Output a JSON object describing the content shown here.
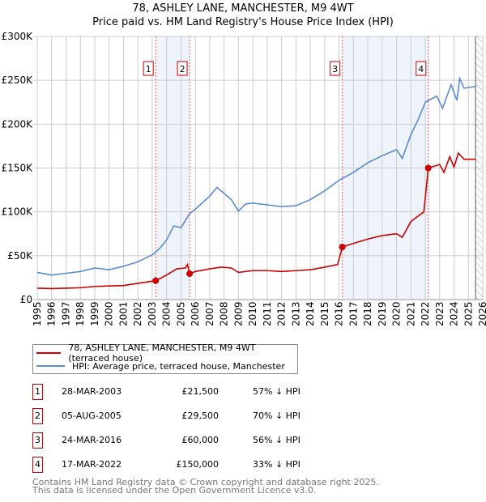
{
  "title": "78, ASHLEY LANE, MANCHESTER, M9 4WT",
  "subtitle": "Price paid vs. HM Land Registry's House Price Index (HPI)",
  "chart_data": {
    "type": "line",
    "title": "78, ASHLEY LANE, MANCHESTER, M9 4WT",
    "subtitle": "Price paid vs. HM Land Registry's House Price Index (HPI)",
    "xlim": [
      1995,
      2026
    ],
    "ylim": [
      0,
      300000
    ],
    "grid": true,
    "x_ticks": [
      "1995",
      "1996",
      "1997",
      "1998",
      "1999",
      "2000",
      "2001",
      "2002",
      "2003",
      "2004",
      "2005",
      "2006",
      "2007",
      "2008",
      "2009",
      "2010",
      "2011",
      "2012",
      "2013",
      "2014",
      "2015",
      "2016",
      "2017",
      "2018",
      "2019",
      "2020",
      "2021",
      "2022",
      "2023",
      "2024",
      "2025",
      "2026"
    ],
    "y_ticks": [
      {
        "v": 0,
        "l": "£0"
      },
      {
        "v": 50000,
        "l": "£50K"
      },
      {
        "v": 100000,
        "l": "£100K"
      },
      {
        "v": 150000,
        "l": "£150K"
      },
      {
        "v": 200000,
        "l": "£200K"
      },
      {
        "v": 250000,
        "l": "£250K"
      },
      {
        "v": 300000,
        "l": "£300K"
      }
    ],
    "series": [
      {
        "name": "78, ASHLEY LANE, MANCHESTER, M9 4WT (terraced house)",
        "color": "#cc0000",
        "points": [
          [
            1995,
            13000
          ],
          [
            1996,
            12500
          ],
          [
            1997,
            13000
          ],
          [
            1998,
            13500
          ],
          [
            1999,
            15000
          ],
          [
            2000,
            15500
          ],
          [
            2001,
            16000
          ],
          [
            2002,
            18500
          ],
          [
            2003.24,
            21500
          ],
          [
            2004,
            28000
          ],
          [
            2004.7,
            35000
          ],
          [
            2005.3,
            36000
          ],
          [
            2005.45,
            40000
          ],
          [
            2005.6,
            29500
          ],
          [
            2006,
            32000
          ],
          [
            2007,
            35000
          ],
          [
            2007.8,
            37000
          ],
          [
            2008.5,
            36000
          ],
          [
            2009,
            31000
          ],
          [
            2010,
            33000
          ],
          [
            2011,
            33000
          ],
          [
            2012,
            32000
          ],
          [
            2013,
            33000
          ],
          [
            2014,
            34000
          ],
          [
            2015,
            37000
          ],
          [
            2015.9,
            40000
          ],
          [
            2016.23,
            60000
          ],
          [
            2017,
            64000
          ],
          [
            2018,
            69000
          ],
          [
            2019,
            73000
          ],
          [
            2020,
            75000
          ],
          [
            2020.4,
            71000
          ],
          [
            2021,
            89000
          ],
          [
            2021.9,
            100000
          ],
          [
            2022.21,
            150000
          ],
          [
            2023,
            154000
          ],
          [
            2023.3,
            145000
          ],
          [
            2023.7,
            163000
          ],
          [
            2024,
            151000
          ],
          [
            2024.3,
            167000
          ],
          [
            2024.7,
            160000
          ],
          [
            2025.5,
            160000
          ]
        ]
      },
      {
        "name": "HPI: Average price, terraced house, Manchester",
        "color": "#5b8bd0",
        "points": [
          [
            1995,
            31000
          ],
          [
            1996,
            28000
          ],
          [
            1997,
            30000
          ],
          [
            1998,
            32000
          ],
          [
            1999,
            36000
          ],
          [
            2000,
            34000
          ],
          [
            2001,
            38000
          ],
          [
            2002,
            43000
          ],
          [
            2003,
            51000
          ],
          [
            2003.5,
            58000
          ],
          [
            2004,
            68000
          ],
          [
            2004.5,
            84000
          ],
          [
            2005,
            82000
          ],
          [
            2005.6,
            98000
          ],
          [
            2006,
            103000
          ],
          [
            2007,
            118000
          ],
          [
            2007.5,
            128000
          ],
          [
            2008,
            121000
          ],
          [
            2008.5,
            114000
          ],
          [
            2009,
            101000
          ],
          [
            2009.5,
            109000
          ],
          [
            2010,
            110000
          ],
          [
            2011,
            108000
          ],
          [
            2012,
            106000
          ],
          [
            2013,
            107000
          ],
          [
            2014,
            114000
          ],
          [
            2015,
            124000
          ],
          [
            2016,
            136000
          ],
          [
            2017,
            145000
          ],
          [
            2018,
            156000
          ],
          [
            2019,
            164000
          ],
          [
            2020,
            171000
          ],
          [
            2020.4,
            161000
          ],
          [
            2021,
            188000
          ],
          [
            2021.5,
            205000
          ],
          [
            2022,
            225000
          ],
          [
            2022.8,
            232000
          ],
          [
            2023.2,
            218000
          ],
          [
            2023.8,
            245000
          ],
          [
            2024.2,
            227000
          ],
          [
            2024.4,
            252000
          ],
          [
            2024.7,
            241000
          ],
          [
            2025.5,
            243000
          ]
        ]
      }
    ],
    "sales": [
      {
        "n": "1",
        "x": 2003.24,
        "date": "28-MAR-2003",
        "price": 21500,
        "price_label": "£21,500",
        "hpi": "57% ↓ HPI"
      },
      {
        "n": "2",
        "x": 2005.6,
        "date": "05-AUG-2005",
        "price": 29500,
        "price_label": "£29,500",
        "hpi": "70% ↓ HPI"
      },
      {
        "n": "3",
        "x": 2016.23,
        "date": "24-MAR-2016",
        "price": 60000,
        "price_label": "£60,000",
        "hpi": "56% ↓ HPI"
      },
      {
        "n": "4",
        "x": 2022.21,
        "date": "17-MAR-2022",
        "price": 150000,
        "price_label": "£150,000",
        "hpi": "33% ↓ HPI"
      }
    ],
    "forecast_start": 2025.5
  },
  "legend": {
    "price_label": "78, ASHLEY LANE, MANCHESTER, M9 4WT (terraced house)",
    "hpi_label": "HPI: Average price, terraced house, Manchester"
  },
  "footer": {
    "line1": "Contains HM Land Registry data © Crown copyright and database right 2025.",
    "line2": "This data is licensed under the Open Government Licence v3.0."
  }
}
